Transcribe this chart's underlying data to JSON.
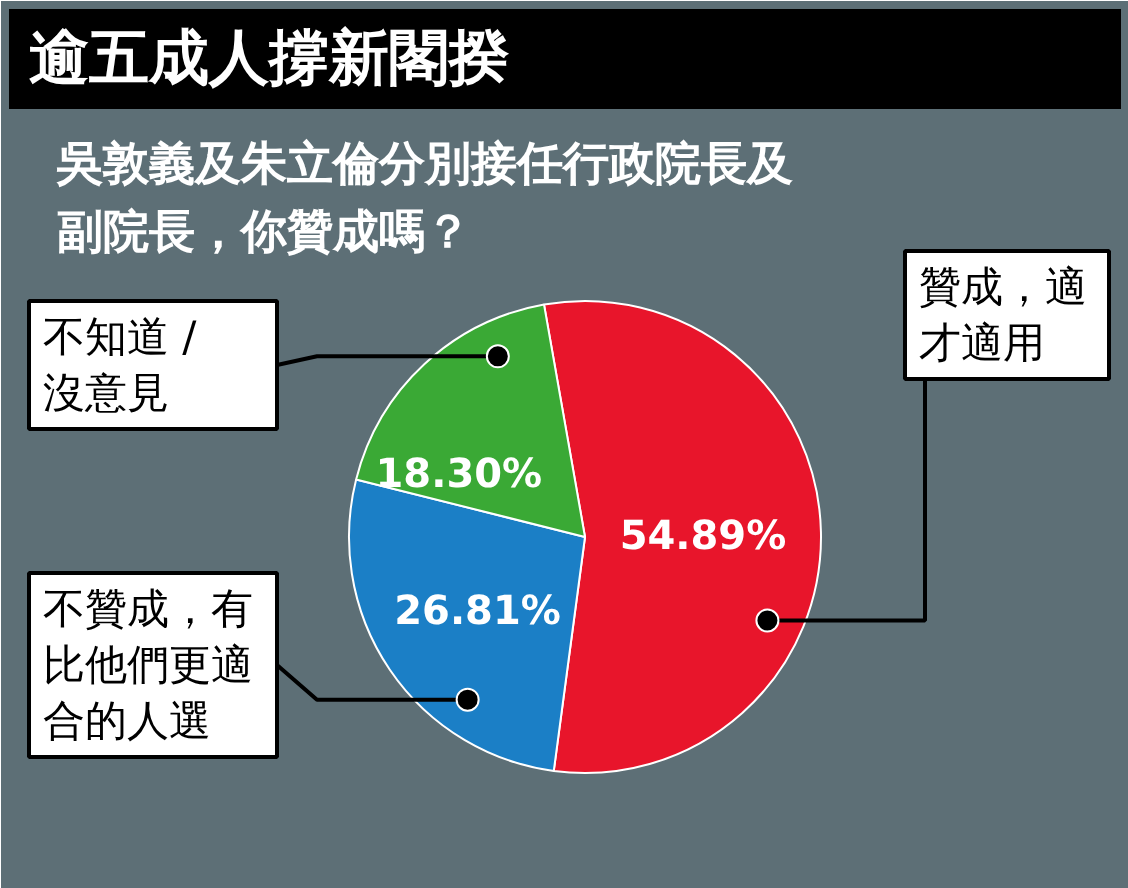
{
  "chart_data": {
    "type": "pie",
    "title": "逾五成人撐新閣揆",
    "subtitle": "吳敦義及朱立倫分別接任行政院長及副院長，你贊成嗎？",
    "categories": [
      "贊成，適才適用",
      "不贊成，有比他們更適合的人選",
      "不知道 / 沒意見"
    ],
    "values": [
      54.89,
      26.81,
      18.3
    ],
    "value_labels": [
      "54.89%",
      "26.81%",
      "18.30%"
    ],
    "colors": [
      "#e8152b",
      "#1b7fc6",
      "#3aa935"
    ]
  }
}
